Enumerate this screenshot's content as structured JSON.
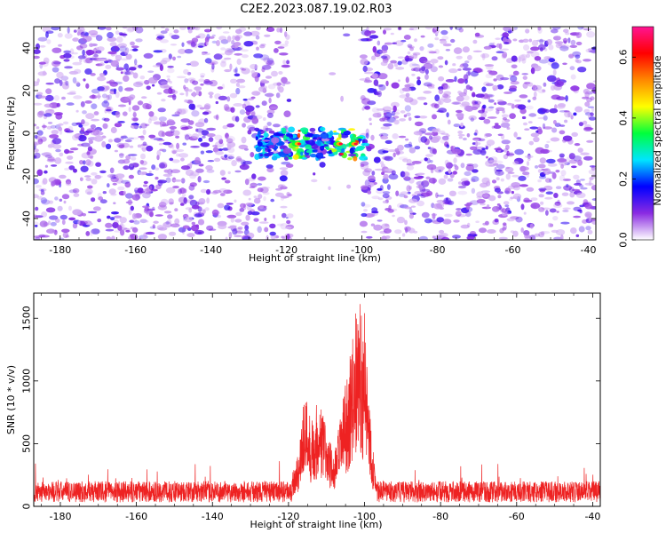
{
  "figure": {
    "title": "C2E2.2023.087.19.02.R03"
  },
  "chart_data": [
    {
      "type": "heatmap",
      "xlabel": "Height of straight line (km)",
      "ylabel": "Frequency (Hz)",
      "xlim": [
        -187,
        -38
      ],
      "ylim": [
        -50,
        50
      ],
      "xticks": [
        -180,
        -160,
        -140,
        -120,
        -100,
        -80,
        -60,
        -40
      ],
      "yticks": [
        -40,
        -20,
        0,
        20,
        40
      ],
      "colorbar": {
        "label": "Normalized spectral amplitude",
        "range": [
          0.0,
          0.7
        ],
        "ticks": [
          0.0,
          0.2,
          0.4,
          0.6
        ],
        "colormap": [
          "#ffffff",
          "#8a2be2",
          "#0000ff",
          "#00e5ff",
          "#00ff3c",
          "#ffff00",
          "#ff8800",
          "#ff0000",
          "#ff1493"
        ]
      },
      "noise_amplitude_range": [
        0.0,
        0.12
      ],
      "gap_km": [
        -119,
        -100
      ],
      "signal": {
        "x_range_km": [
          -128,
          -99
        ],
        "frequency_hz": -5,
        "frequency_spread_hz": [
          -12,
          2
        ],
        "peak_amplitude": 0.7,
        "peaks_km": [
          -117,
          -106,
          -102
        ]
      },
      "grid": false
    },
    {
      "type": "line",
      "xlabel": "Height of straight line (km)",
      "ylabel": "SNR (10 * v/v)",
      "xlim": [
        -187,
        -38
      ],
      "ylim": [
        0,
        1700
      ],
      "xticks": [
        -180,
        -160,
        -140,
        -120,
        -100,
        -80,
        -60,
        -40
      ],
      "yticks": [
        0,
        500,
        1000,
        1500
      ],
      "color": "#ee2222",
      "series": [
        {
          "baseline_snr": [
            80,
            200
          ],
          "x": [
            -187,
            -180,
            -170,
            -160,
            -150,
            -140,
            -130,
            -125,
            -120,
            -117,
            -116,
            -115,
            -114,
            -112,
            -110,
            -108,
            -106,
            -104,
            -103,
            -102,
            -101,
            -100.5,
            -100,
            -99,
            -98,
            -97,
            -95,
            -90,
            -80,
            -70,
            -60,
            -50,
            -40,
            -38
          ],
          "values": [
            140,
            150,
            145,
            150,
            145,
            150,
            160,
            190,
            155,
            500,
            950,
            850,
            700,
            880,
            650,
            400,
            800,
            1150,
            1400,
            1650,
            1700,
            1450,
            1550,
            1000,
            600,
            200,
            150,
            145,
            150,
            145,
            150,
            145,
            160,
            150
          ]
        }
      ],
      "grid": false
    }
  ]
}
